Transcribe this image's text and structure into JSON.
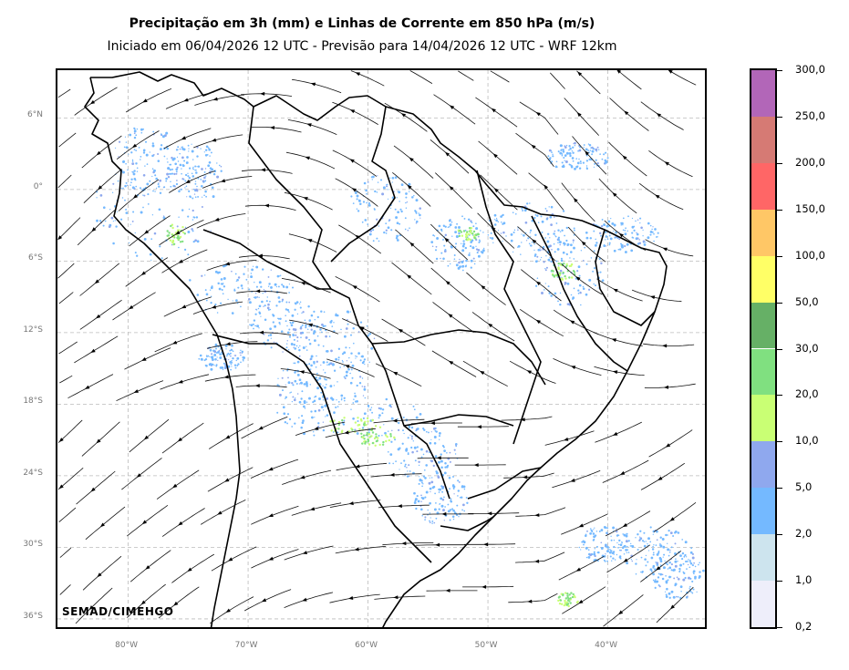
{
  "title": "Precipitação em 3h (mm) e Linhas de Corrente em 850 hPa (m/s)",
  "subtitle": "Iniciado em 06/04/2026 12 UTC - Previsão para 14/04/2026 12 UTC - WRF 12km",
  "credit": "SEMAD/CIMEHGO",
  "map": {
    "lon_range": [
      -85.9,
      -31.6
    ],
    "lat_range": [
      -37.0,
      10.0
    ],
    "lat_labels": [
      "6°N",
      "0°",
      "6°S",
      "12°S",
      "18°S",
      "24°S",
      "30°S",
      "36°S"
    ],
    "lat_values": [
      6,
      0,
      -6,
      -12,
      -18,
      -24,
      -30,
      -36
    ],
    "lon_labels": [
      "80°W",
      "70°W",
      "60°W",
      "50°W",
      "40°W"
    ],
    "lon_values": [
      -80,
      -70,
      -60,
      -50,
      -40
    ],
    "gridlines": "dashed",
    "streamlines": "black lines with arrows",
    "borders": "country and state boundaries in black"
  },
  "colorbar": {
    "labels": [
      "0,2",
      "1,0",
      "2,0",
      "5,0",
      "10,0",
      "20,0",
      "30,0",
      "50,0",
      "100,0",
      "150,0",
      "200,0",
      "250,0",
      "300,0"
    ],
    "colors": [
      "#eeeefa",
      "#cde4ee",
      "#74b9ff",
      "#8fa8ee",
      "#c9ff74",
      "#80e080",
      "#66b066",
      "#ffff66",
      "#ffc766",
      "#ff6666",
      "#d67a74",
      "#b266b8"
    ]
  }
}
